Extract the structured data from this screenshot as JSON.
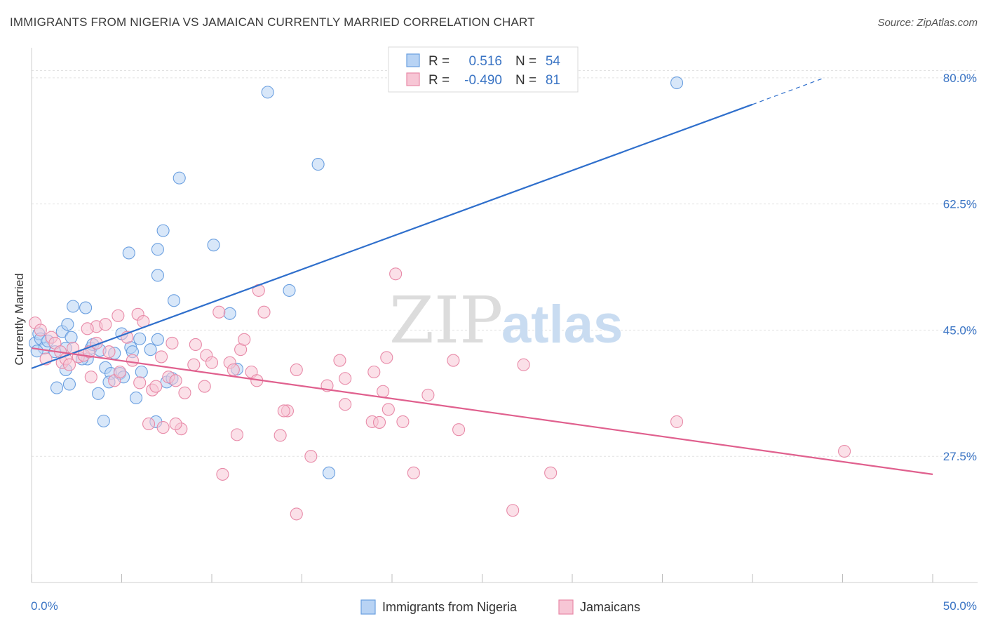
{
  "header": {
    "title": "IMMIGRANTS FROM NIGERIA VS JAMAICAN CURRENTLY MARRIED CORRELATION CHART",
    "source": "Source: ZipAtlas.com"
  },
  "watermark": {
    "zip": "ZIP",
    "atlas": "atlas"
  },
  "chart_data": {
    "type": "scatter",
    "ylabel": "Currently Married",
    "xlim": [
      0,
      50
    ],
    "ylim": [
      10,
      83
    ],
    "x_tick_labels": [
      {
        "value": 0,
        "label": "0.0%"
      },
      {
        "value": 50,
        "label": "50.0%"
      }
    ],
    "y_tick_labels": [
      {
        "value": 27.5,
        "label": "27.5%"
      },
      {
        "value": 45.0,
        "label": "45.0%"
      },
      {
        "value": 62.5,
        "label": "62.5%"
      },
      {
        "value": 80.0,
        "label": "80.0%"
      }
    ],
    "grid": "horizontal dashed",
    "legend_position": "bottom",
    "stats_box": [
      {
        "r_label": "R =",
        "r_value": "0.516",
        "n_label": "N =",
        "n_value": "54"
      },
      {
        "r_label": "R =",
        "r_value": "-0.490",
        "n_label": "N =",
        "n_value": "81"
      }
    ],
    "series": [
      {
        "name": "Immigrants from Nigeria",
        "color": "#6a9fe0",
        "fill": "#b8d3f4",
        "line_color": "#2f6fcc",
        "trend": {
          "x0": 0,
          "y0": 39.7,
          "x1": 40,
          "y1": 76.3,
          "dash_to_x": 44,
          "dash_to_y": 80.0
        },
        "points": [
          [
            0.2,
            43.2
          ],
          [
            0.4,
            44.5
          ],
          [
            0.5,
            43.8
          ],
          [
            0.7,
            42.5
          ],
          [
            0.9,
            43.5
          ],
          [
            1.3,
            42.0
          ],
          [
            1.7,
            44.8
          ],
          [
            1.9,
            39.5
          ],
          [
            2.1,
            37.5
          ],
          [
            1.4,
            37.0
          ],
          [
            2.0,
            45.8
          ],
          [
            2.3,
            48.3
          ],
          [
            2.2,
            44.0
          ],
          [
            3.0,
            48.1
          ],
          [
            3.3,
            42.5
          ],
          [
            3.1,
            41.0
          ],
          [
            3.4,
            43.0
          ],
          [
            3.8,
            42.2
          ],
          [
            4.1,
            39.8
          ],
          [
            4.4,
            39.0
          ],
          [
            4.9,
            39.0
          ],
          [
            5.1,
            38.5
          ],
          [
            3.7,
            36.2
          ],
          [
            4.3,
            37.8
          ],
          [
            4.0,
            32.4
          ],
          [
            5.0,
            44.5
          ],
          [
            5.5,
            42.6
          ],
          [
            5.6,
            42.0
          ],
          [
            6.1,
            39.2
          ],
          [
            6.0,
            43.8
          ],
          [
            5.8,
            35.6
          ],
          [
            6.6,
            42.3
          ],
          [
            6.9,
            32.3
          ],
          [
            7.0,
            43.7
          ],
          [
            7.5,
            37.8
          ],
          [
            7.8,
            38.3
          ],
          [
            5.4,
            55.7
          ],
          [
            7.0,
            56.2
          ],
          [
            7.3,
            58.8
          ],
          [
            7.0,
            52.6
          ],
          [
            7.9,
            49.1
          ],
          [
            8.2,
            66.1
          ],
          [
            10.1,
            56.8
          ],
          [
            11.0,
            47.3
          ],
          [
            11.4,
            39.6
          ],
          [
            13.1,
            78.0
          ],
          [
            14.3,
            50.5
          ],
          [
            15.9,
            68.0
          ],
          [
            16.5,
            25.2
          ],
          [
            35.8,
            79.3
          ],
          [
            1.9,
            42.5
          ],
          [
            2.8,
            41.0
          ],
          [
            4.6,
            41.8
          ],
          [
            0.3,
            42.1
          ]
        ]
      },
      {
        "name": "Jamaicans",
        "color": "#e88aa8",
        "fill": "#f7c6d5",
        "line_color": "#e0608e",
        "trend": {
          "x0": 0,
          "y0": 42.5,
          "x1": 50,
          "y1": 25.0
        },
        "points": [
          [
            0.2,
            46.0
          ],
          [
            0.5,
            45.0
          ],
          [
            0.8,
            41.0
          ],
          [
            1.1,
            44.0
          ],
          [
            1.3,
            43.2
          ],
          [
            1.6,
            42.0
          ],
          [
            1.7,
            40.5
          ],
          [
            1.9,
            41.0
          ],
          [
            2.1,
            40.2
          ],
          [
            2.3,
            42.5
          ],
          [
            2.6,
            41.3
          ],
          [
            2.9,
            41.5
          ],
          [
            3.2,
            42.0
          ],
          [
            3.6,
            43.2
          ],
          [
            3.3,
            38.5
          ],
          [
            3.6,
            45.5
          ],
          [
            3.1,
            45.2
          ],
          [
            4.1,
            45.8
          ],
          [
            4.3,
            42.0
          ],
          [
            4.6,
            38.0
          ],
          [
            4.9,
            39.2
          ],
          [
            4.8,
            47.0
          ],
          [
            5.3,
            44.0
          ],
          [
            5.6,
            40.8
          ],
          [
            5.9,
            47.2
          ],
          [
            6.2,
            46.2
          ],
          [
            6.0,
            37.7
          ],
          [
            6.7,
            36.7
          ],
          [
            6.9,
            37.2
          ],
          [
            7.2,
            41.3
          ],
          [
            7.6,
            38.5
          ],
          [
            7.8,
            43.2
          ],
          [
            8.0,
            38.0
          ],
          [
            8.5,
            36.3
          ],
          [
            8.3,
            31.3
          ],
          [
            6.5,
            32.0
          ],
          [
            7.3,
            31.5
          ],
          [
            8.0,
            32.0
          ],
          [
            9.1,
            43.0
          ],
          [
            9.0,
            40.2
          ],
          [
            9.6,
            37.2
          ],
          [
            9.7,
            41.5
          ],
          [
            10.0,
            40.5
          ],
          [
            10.4,
            47.5
          ],
          [
            10.6,
            25.0
          ],
          [
            11.0,
            40.5
          ],
          [
            11.2,
            39.5
          ],
          [
            11.6,
            42.3
          ],
          [
            11.8,
            43.7
          ],
          [
            11.4,
            30.5
          ],
          [
            12.2,
            39.2
          ],
          [
            12.5,
            38.0
          ],
          [
            12.6,
            50.5
          ],
          [
            12.9,
            47.5
          ],
          [
            14.2,
            33.8
          ],
          [
            14.0,
            33.8
          ],
          [
            14.7,
            39.5
          ],
          [
            15.5,
            27.5
          ],
          [
            16.4,
            37.3
          ],
          [
            17.1,
            40.8
          ],
          [
            17.4,
            38.3
          ],
          [
            17.4,
            34.7
          ],
          [
            18.9,
            32.3
          ],
          [
            19.0,
            39.2
          ],
          [
            19.5,
            36.5
          ],
          [
            19.3,
            32.2
          ],
          [
            19.7,
            41.2
          ],
          [
            19.8,
            34.0
          ],
          [
            20.2,
            52.8
          ],
          [
            20.6,
            32.3
          ],
          [
            22.0,
            36.0
          ],
          [
            23.7,
            31.2
          ],
          [
            23.4,
            40.8
          ],
          [
            26.7,
            20.0
          ],
          [
            27.3,
            40.2
          ],
          [
            28.8,
            25.2
          ],
          [
            14.7,
            19.5
          ],
          [
            35.8,
            32.3
          ],
          [
            45.1,
            28.2
          ],
          [
            21.2,
            25.2
          ],
          [
            13.8,
            30.4
          ]
        ]
      }
    ]
  }
}
